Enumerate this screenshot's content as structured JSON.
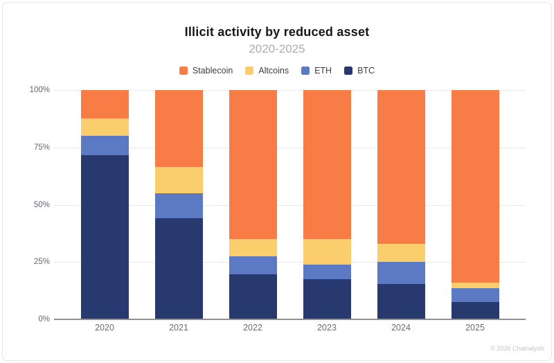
{
  "card": {
    "title": "Illicit activity by reduced asset",
    "subtitle": "2020-2025",
    "attribution": "© 2026 Chainalysis"
  },
  "chart_data": {
    "type": "bar",
    "stacked": true,
    "stack_unit": "percent",
    "title": "Illicit activity by reduced asset",
    "subtitle": "2020-2025",
    "xlabel": "",
    "ylabel": "",
    "ylim": [
      0,
      100
    ],
    "grid": true,
    "legend_position": "top",
    "categories": [
      "2020",
      "2021",
      "2022",
      "2023",
      "2024",
      "2025"
    ],
    "y_ticks": [
      "100%",
      "75%",
      "50%",
      "25%",
      "0%"
    ],
    "series": [
      {
        "name": "Stablecoin",
        "color": "#f87c45",
        "values": [
          12.5,
          33.5,
          65,
          65,
          67,
          84
        ]
      },
      {
        "name": "Altcoins",
        "color": "#facd6d",
        "values": [
          7.5,
          11.5,
          7.5,
          11,
          8,
          2.5
        ]
      },
      {
        "name": "ETH",
        "color": "#5c7ac4",
        "values": [
          8.5,
          11,
          8,
          6.5,
          9.5,
          6
        ]
      },
      {
        "name": "BTC",
        "color": "#28396f",
        "values": [
          71.5,
          44,
          19.5,
          17.5,
          15.5,
          7.5
        ]
      }
    ]
  }
}
